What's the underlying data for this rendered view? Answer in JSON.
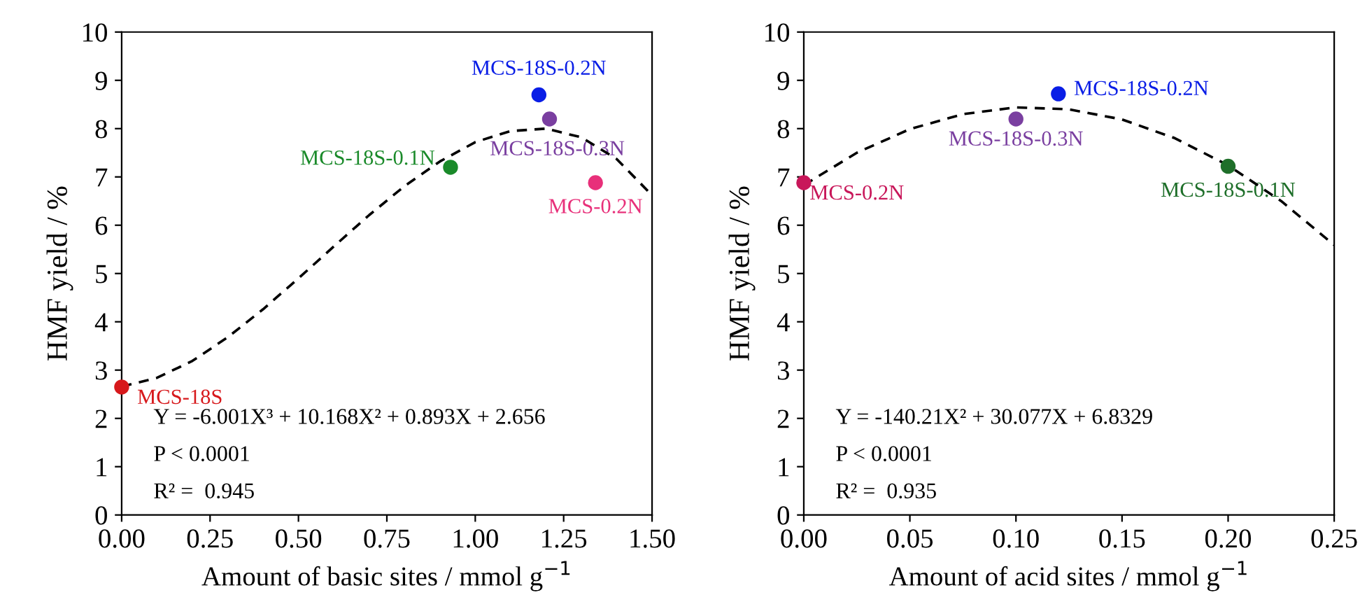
{
  "chart_data": [
    {
      "type": "scatter",
      "xlabel": "Amount of basic sites / mmol g$^{−1}$",
      "ylabel": "HMF yield / %",
      "xlim": [
        0,
        1.5
      ],
      "xticks": [
        {
          "value": 0,
          "label": "0.00"
        },
        {
          "value": 0.25,
          "label": "0.25"
        },
        {
          "value": 0.5,
          "label": "0.50"
        },
        {
          "value": 0.75,
          "label": "0.75"
        },
        {
          "value": 1.0,
          "label": "1.00"
        },
        {
          "value": 1.25,
          "label": "1.25"
        },
        {
          "value": 1.5,
          "label": "1.50"
        }
      ],
      "ylim": [
        0,
        10
      ],
      "yticks": [
        0,
        1,
        2,
        3,
        4,
        5,
        6,
        7,
        8,
        9,
        10
      ],
      "grid": false,
      "legend": false,
      "marker": "circle",
      "series": [
        {
          "name": "MCS-18S",
          "color": "#d7191c",
          "x": [
            0
          ],
          "values": [
            2.65
          ]
        },
        {
          "name": "MCS-18S-0.1N",
          "color": "#1a8a2a",
          "x": [
            0.93
          ],
          "values": [
            7.2
          ]
        },
        {
          "name": "MCS-18S-0.2N",
          "color": "#0a1ee6",
          "x": [
            1.18
          ],
          "values": [
            8.7
          ]
        },
        {
          "name": "MCS-18S-0.3N",
          "color": "#7a3fa0",
          "x": [
            1.21
          ],
          "values": [
            8.2
          ]
        },
        {
          "name": "MCS-0.2N",
          "color": "#e8307a",
          "x": [
            1.34
          ],
          "values": [
            6.88
          ]
        },
        {
          "type": "line",
          "color": "#000000",
          "line_style": "dashed",
          "marker": "none",
          "x": [
            0,
            0.1,
            0.2,
            0.3,
            0.4,
            0.5,
            0.6,
            0.7,
            0.8,
            0.9,
            1.0,
            1.1,
            1.2,
            1.3,
            1.4,
            1.5
          ],
          "values": [
            2.66,
            2.84,
            3.19,
            3.68,
            4.26,
            4.9,
            5.56,
            6.21,
            6.81,
            7.32,
            7.72,
            7.95,
            8.0,
            7.82,
            7.37,
            6.62
          ]
        }
      ],
      "annotations": [
        "Y = -6.001X³ + 10.168X² + 0.893X + 2.656",
        "P < 0.0001",
        "R² =  0.945"
      ]
    },
    {
      "type": "scatter",
      "xlabel": "Amount of acid sites / mmol g$^{−1}$",
      "ylabel": "HMF yield / %",
      "xlim": [
        0,
        0.25
      ],
      "xticks": [
        {
          "value": 0,
          "label": "0.00"
        },
        {
          "value": 0.05,
          "label": "0.05"
        },
        {
          "value": 0.1,
          "label": "0.10"
        },
        {
          "value": 0.15,
          "label": "0.15"
        },
        {
          "value": 0.2,
          "label": "0.20"
        },
        {
          "value": 0.25,
          "label": "0.25"
        }
      ],
      "ylim": [
        0,
        10
      ],
      "yticks": [
        0,
        1,
        2,
        3,
        4,
        5,
        6,
        7,
        8,
        9,
        10
      ],
      "grid": false,
      "legend": false,
      "marker": "circle",
      "series": [
        {
          "name": "MCS-0.2N",
          "color": "#c8175a",
          "x": [
            0
          ],
          "values": [
            6.88
          ]
        },
        {
          "name": "MCS-18S-0.3N",
          "color": "#7a3fa0",
          "x": [
            0.1
          ],
          "values": [
            8.2
          ]
        },
        {
          "name": "MCS-18S-0.2N",
          "color": "#0a1ee6",
          "x": [
            0.12
          ],
          "values": [
            8.72
          ]
        },
        {
          "name": "MCS-18S-0.1N",
          "color": "#1f6f2a",
          "x": [
            0.2
          ],
          "values": [
            7.22
          ]
        },
        {
          "type": "line",
          "color": "#000000",
          "line_style": "dashed",
          "marker": "none",
          "x": [
            0,
            0.025,
            0.05,
            0.075,
            0.1,
            0.125,
            0.15,
            0.175,
            0.2,
            0.225,
            0.25
          ],
          "values": [
            6.83,
            7.5,
            7.99,
            8.3,
            8.44,
            8.4,
            8.19,
            7.8,
            7.24,
            6.5,
            5.59
          ]
        }
      ],
      "annotations": [
        "Y = -140.21X² + 30.077X + 6.8329",
        "P < 0.0001",
        "R² =  0.935"
      ]
    }
  ]
}
